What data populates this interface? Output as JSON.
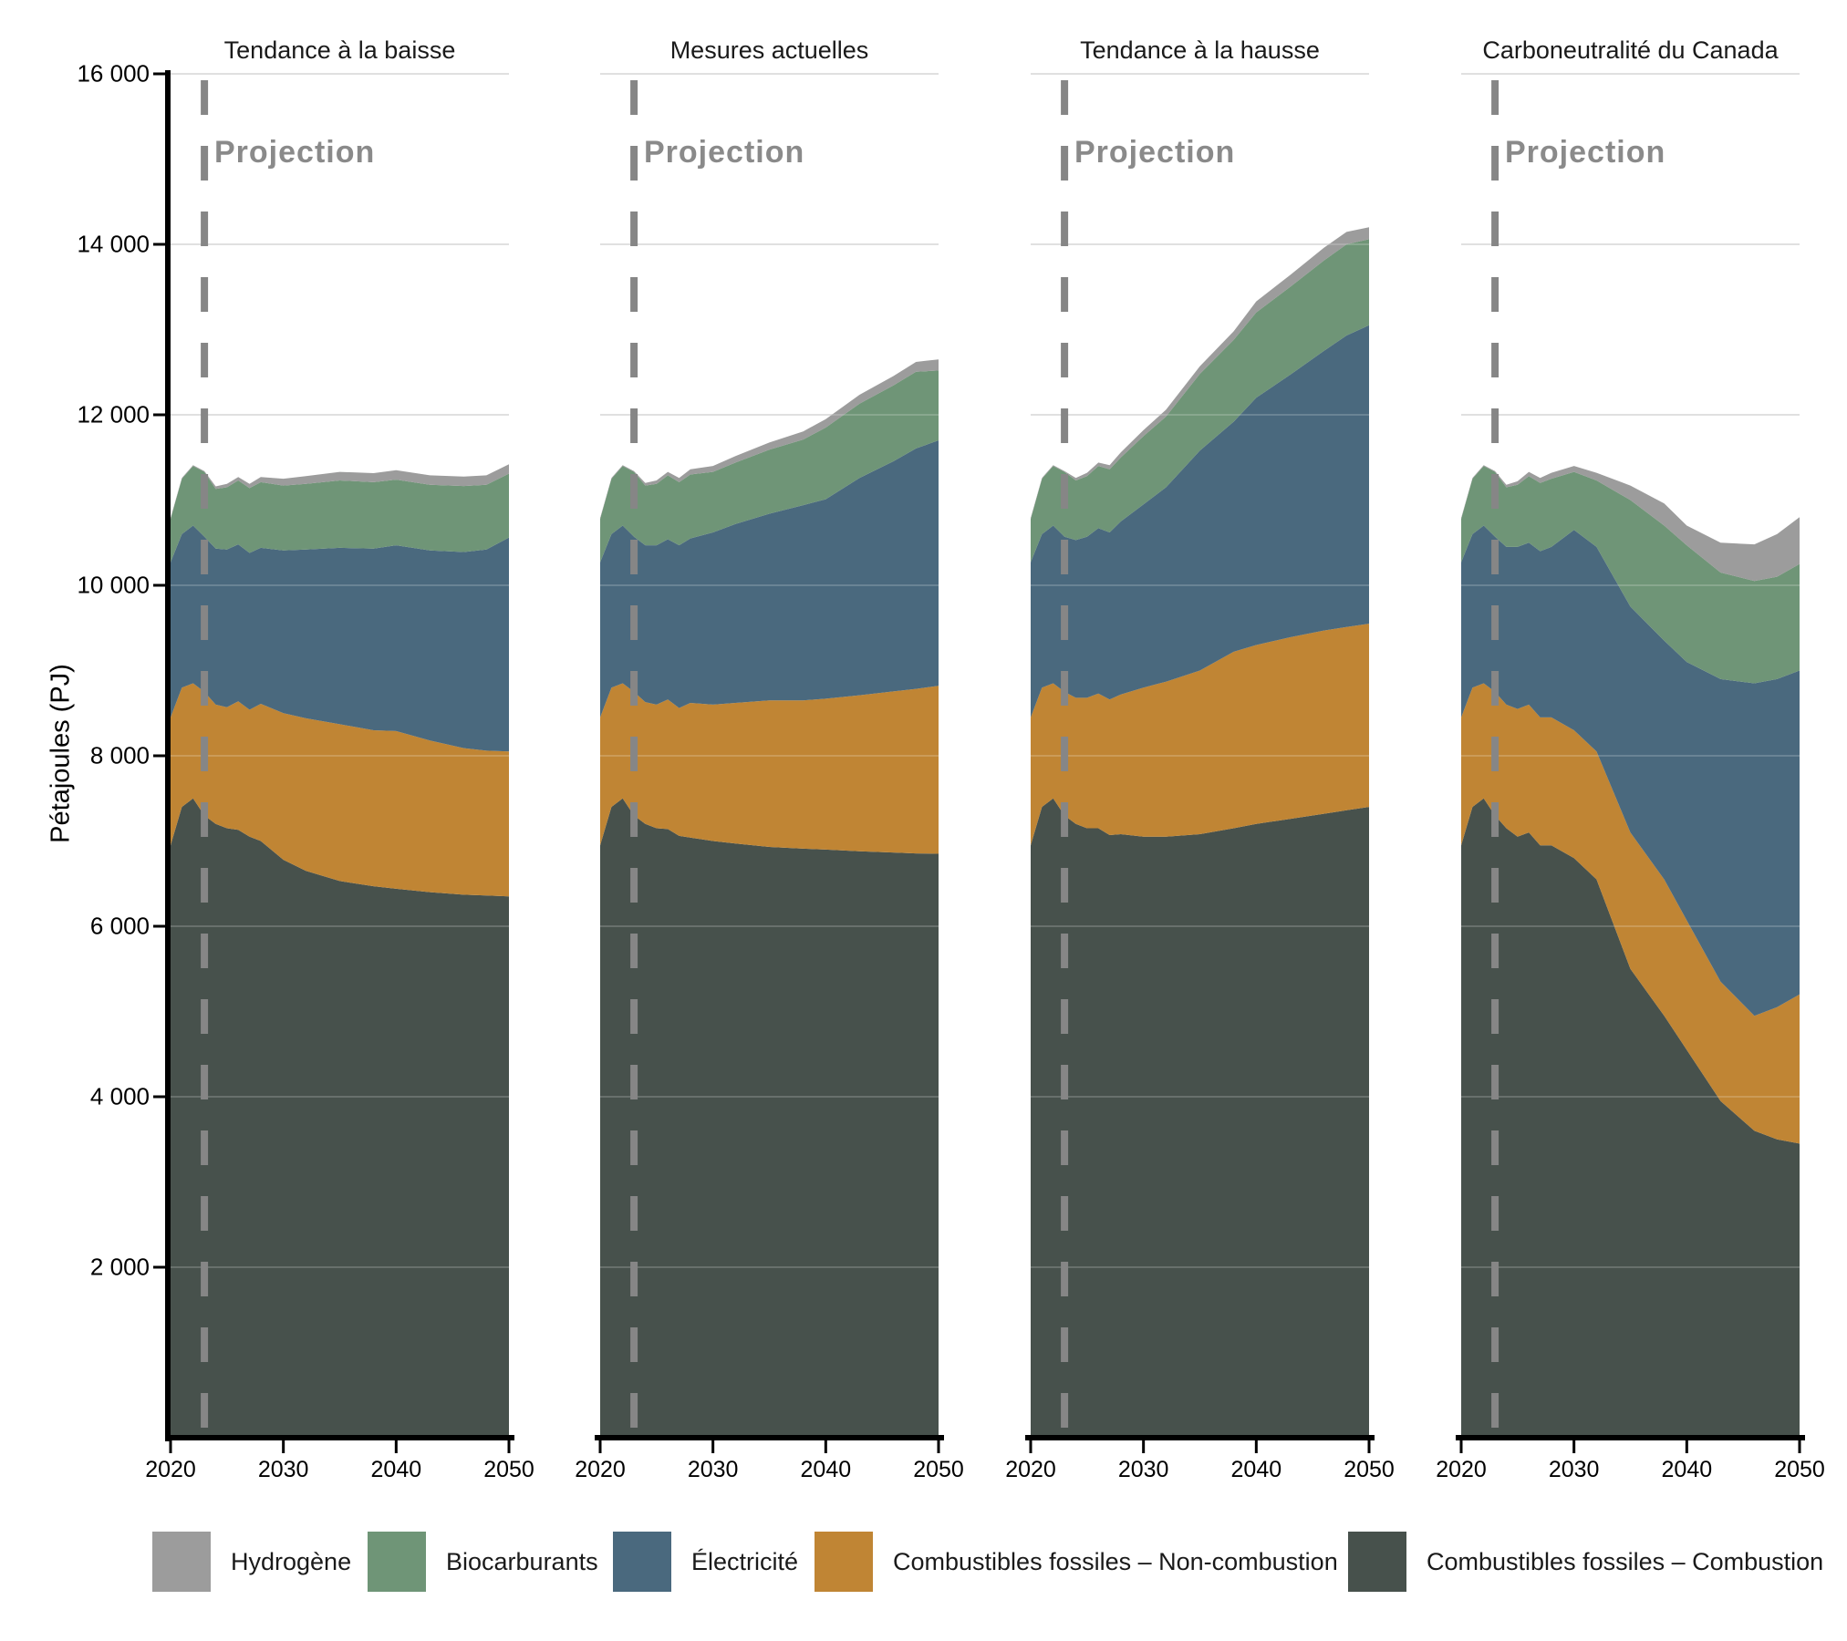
{
  "figure": {
    "background": "#ffffff"
  },
  "y_axis_title": "Pétajoules (PJ)",
  "projection": {
    "label": "Projection",
    "year": 2023,
    "line_color": "#868686",
    "label_color": "#8a8a8a"
  },
  "legend": {
    "items": [
      {
        "key": "hydrogene",
        "label": "Hydrogène",
        "color": "#9c9c9c"
      },
      {
        "key": "biocarburants",
        "label": "Biocarburants",
        "color": "#6f9577"
      },
      {
        "key": "electricite",
        "label": "Électricité",
        "color": "#4a697e"
      },
      {
        "key": "non_combustion",
        "label": "Combustibles fossiles – Non-combustion",
        "color": "#c08534"
      },
      {
        "key": "combustion",
        "label": "Combustibles fossiles – Combustion",
        "color": "#47514c"
      }
    ]
  },
  "chart_data": {
    "type": "area",
    "stacked": true,
    "title": "",
    "xlabel": "",
    "ylabel": "Pétajoules (PJ)",
    "ylim": [
      0,
      16000
    ],
    "grid": true,
    "y_ticks": {
      "values": [
        2000,
        4000,
        6000,
        8000,
        10000,
        12000,
        14000,
        16000
      ],
      "labels": [
        "2 000",
        "4 000",
        "6 000",
        "8 000",
        "10 000",
        "12 000",
        "14 000",
        "16 000"
      ]
    },
    "x_ticks": {
      "values": [
        2020,
        2030,
        2040,
        2050
      ],
      "labels": [
        "2020",
        "2030",
        "2040",
        "2050"
      ]
    },
    "years": [
      2020,
      2021,
      2022,
      2023,
      2024,
      2025,
      2026,
      2027,
      2028,
      2030,
      2032,
      2035,
      2038,
      2040,
      2043,
      2046,
      2048,
      2050
    ],
    "projection_start_year": 2023,
    "series": [
      {
        "key": "combustion",
        "name": "Combustibles fossiles – Combustion",
        "color": "#47514c"
      },
      {
        "key": "non_combustion",
        "name": "Combustibles fossiles – Non-combustion",
        "color": "#c08534"
      },
      {
        "key": "electricite",
        "name": "Électricité",
        "color": "#4a697e"
      },
      {
        "key": "biocarburants",
        "name": "Biocarburants",
        "color": "#6f9577"
      },
      {
        "key": "hydrogene",
        "name": "Hydrogène",
        "color": "#9c9c9c"
      }
    ],
    "panels": [
      {
        "title": "Tendance à la baisse",
        "values": {
          "combustion": [
            6950,
            7400,
            7500,
            7300,
            7200,
            7150,
            7130,
            7050,
            7000,
            6780,
            6650,
            6530,
            6470,
            6440,
            6400,
            6370,
            6360,
            6350
          ],
          "non_combustion": [
            1500,
            1400,
            1350,
            1450,
            1400,
            1420,
            1510,
            1490,
            1610,
            1720,
            1790,
            1840,
            1830,
            1850,
            1780,
            1720,
            1700,
            1700
          ],
          "electricite": [
            1820,
            1800,
            1850,
            1820,
            1830,
            1850,
            1840,
            1840,
            1830,
            1910,
            1980,
            2070,
            2130,
            2180,
            2230,
            2300,
            2360,
            2510
          ],
          "biocarburants": [
            510,
            650,
            700,
            760,
            700,
            730,
            750,
            760,
            770,
            760,
            770,
            790,
            780,
            770,
            770,
            775,
            760,
            750
          ],
          "hydrogene": [
            10,
            10,
            10,
            10,
            30,
            40,
            40,
            50,
            60,
            80,
            90,
            100,
            105,
            110,
            110,
            110,
            110,
            110
          ]
        }
      },
      {
        "title": "Mesures actuelles",
        "values": {
          "combustion": [
            6950,
            7400,
            7500,
            7300,
            7200,
            7150,
            7140,
            7060,
            7040,
            7000,
            6970,
            6930,
            6910,
            6900,
            6880,
            6865,
            6855,
            6850
          ],
          "non_combustion": [
            1500,
            1400,
            1350,
            1450,
            1430,
            1450,
            1520,
            1500,
            1580,
            1600,
            1650,
            1720,
            1740,
            1770,
            1830,
            1890,
            1930,
            1970
          ],
          "electricite": [
            1820,
            1800,
            1850,
            1820,
            1840,
            1870,
            1880,
            1910,
            1930,
            2020,
            2100,
            2190,
            2290,
            2340,
            2550,
            2700,
            2820,
            2880
          ],
          "biocarburants": [
            510,
            650,
            700,
            760,
            700,
            720,
            750,
            740,
            750,
            710,
            720,
            750,
            770,
            840,
            870,
            890,
            900,
            820
          ],
          "hydrogene": [
            10,
            10,
            10,
            10,
            30,
            40,
            40,
            50,
            60,
            70,
            75,
            85,
            95,
            100,
            105,
            110,
            115,
            130
          ]
        }
      },
      {
        "title": "Tendance à la hausse",
        "values": {
          "combustion": [
            6950,
            7400,
            7500,
            7300,
            7200,
            7150,
            7150,
            7070,
            7080,
            7050,
            7050,
            7080,
            7150,
            7200,
            7260,
            7320,
            7360,
            7400
          ],
          "non_combustion": [
            1500,
            1400,
            1350,
            1450,
            1480,
            1530,
            1580,
            1590,
            1640,
            1750,
            1820,
            1920,
            2070,
            2100,
            2130,
            2150,
            2150,
            2150
          ],
          "electricite": [
            1820,
            1800,
            1850,
            1820,
            1850,
            1890,
            1940,
            1960,
            2030,
            2150,
            2280,
            2580,
            2700,
            2900,
            3080,
            3280,
            3420,
            3500
          ],
          "biocarburants": [
            510,
            650,
            700,
            760,
            700,
            710,
            730,
            740,
            750,
            800,
            830,
            900,
            960,
            1000,
            1030,
            1060,
            1070,
            1010
          ],
          "hydrogene": [
            10,
            10,
            10,
            10,
            30,
            40,
            40,
            50,
            60,
            70,
            80,
            90,
            100,
            130,
            140,
            150,
            145,
            140
          ]
        }
      },
      {
        "title": "Carboneutralité du Canada",
        "values": {
          "combustion": [
            6950,
            7400,
            7500,
            7300,
            7150,
            7050,
            7100,
            6950,
            6950,
            6800,
            6550,
            5500,
            4950,
            4550,
            3950,
            3600,
            3500,
            3450
          ],
          "non_combustion": [
            1500,
            1400,
            1350,
            1450,
            1450,
            1500,
            1500,
            1500,
            1500,
            1500,
            1500,
            1600,
            1600,
            1520,
            1400,
            1350,
            1550,
            1750
          ],
          "electricite": [
            1820,
            1800,
            1850,
            1820,
            1850,
            1900,
            1900,
            1950,
            2000,
            2350,
            2400,
            2650,
            2800,
            3030,
            3550,
            3900,
            3850,
            3800
          ],
          "biocarburants": [
            510,
            650,
            700,
            760,
            700,
            730,
            780,
            800,
            800,
            680,
            780,
            1250,
            1350,
            1370,
            1250,
            1200,
            1200,
            1250
          ],
          "hydrogene": [
            10,
            10,
            10,
            10,
            30,
            40,
            50,
            60,
            70,
            70,
            90,
            170,
            260,
            230,
            350,
            430,
            500,
            550
          ]
        }
      }
    ]
  }
}
